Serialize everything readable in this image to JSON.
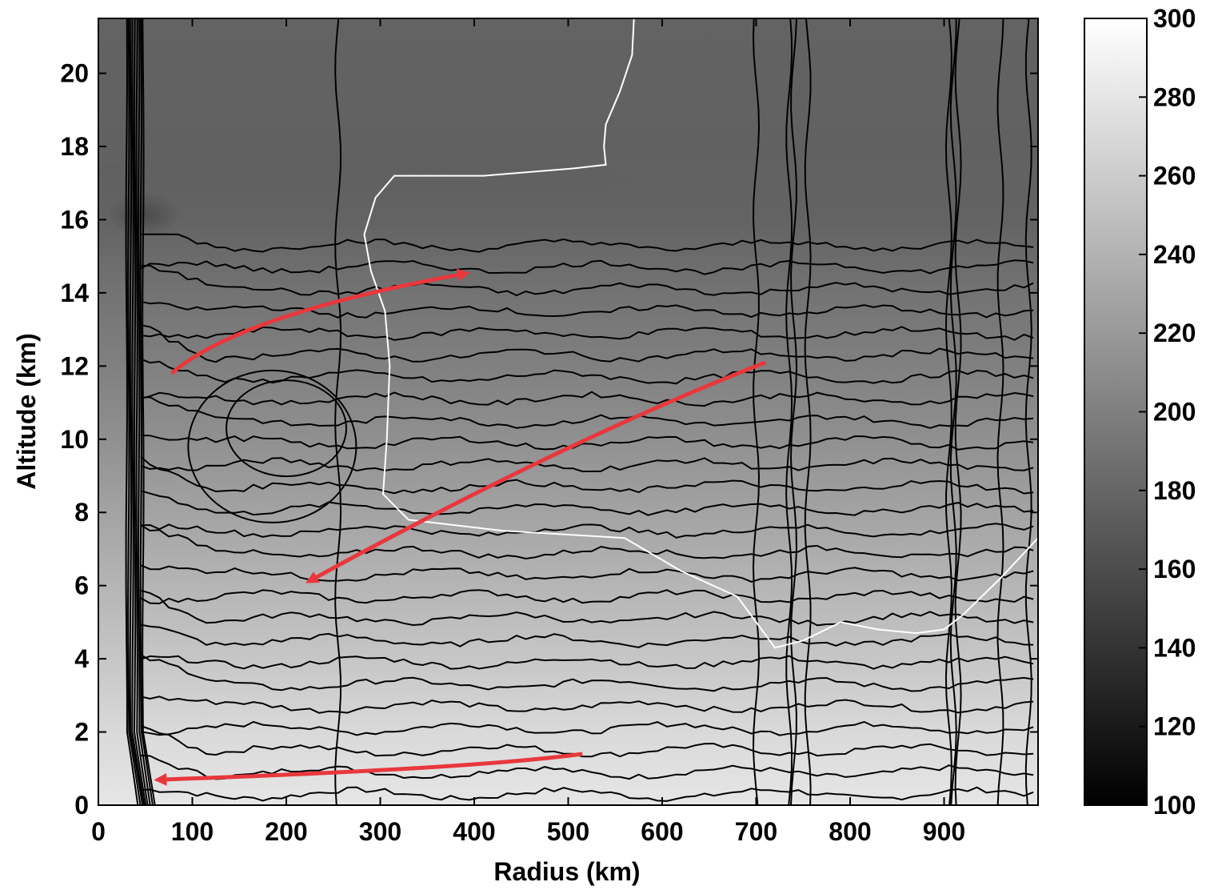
{
  "chart_data": {
    "type": "heatmap",
    "xlabel": "Radius (km)",
    "ylabel": "Altitude (km)",
    "xlim": [
      0,
      1000
    ],
    "ylim": [
      0,
      21.5
    ],
    "x_ticks": [
      0,
      100,
      200,
      300,
      400,
      500,
      600,
      700,
      800,
      900
    ],
    "y_ticks": [
      0,
      2,
      4,
      6,
      8,
      10,
      12,
      14,
      16,
      18,
      20
    ],
    "colorbar": {
      "range": [
        100,
        300
      ],
      "ticks": [
        100,
        120,
        140,
        160,
        180,
        200,
        220,
        240,
        260,
        280,
        300
      ],
      "colormap": "gray"
    },
    "background_field": {
      "description_levels": [
        {
          "altitude": 0,
          "value": 280
        },
        {
          "altitude": 2,
          "value": 270
        },
        {
          "altitude": 4,
          "value": 255
        },
        {
          "altitude": 6,
          "value": 242
        },
        {
          "altitude": 8,
          "value": 228
        },
        {
          "altitude": 10,
          "value": 213
        },
        {
          "altitude": 12,
          "value": 200
        },
        {
          "altitude": 14,
          "value": 190
        },
        {
          "altitude": 16,
          "value": 178
        },
        {
          "altitude": 18,
          "value": 176
        },
        {
          "altitude": 21.5,
          "value": 178
        }
      ]
    },
    "arrows": [
      {
        "points": [
          [
            78,
            11.8
          ],
          [
            150,
            13.4
          ],
          [
            385,
            14.5
          ]
        ]
      },
      {
        "points": [
          [
            710,
            12.1
          ],
          [
            500,
            10.0
          ],
          [
            230,
            6.2
          ]
        ]
      },
      {
        "points": [
          [
            515,
            1.4
          ],
          [
            400,
            1.0
          ],
          [
            70,
            0.7
          ]
        ]
      }
    ],
    "arrow_color": "#e8383d",
    "white_contour": [
      [
        570,
        21.5
      ],
      [
        568,
        20.5
      ],
      [
        555,
        19.5
      ],
      [
        540,
        18.6
      ],
      [
        538,
        18.0
      ],
      [
        540,
        17.5
      ],
      [
        505,
        17.4
      ],
      [
        410,
        17.2
      ],
      [
        315,
        17.2
      ],
      [
        295,
        16.6
      ],
      [
        283,
        15.6
      ],
      [
        290,
        14.6
      ],
      [
        305,
        13.5
      ],
      [
        310,
        12.0
      ],
      [
        307,
        10.0
      ],
      [
        303,
        8.5
      ],
      [
        330,
        7.8
      ],
      [
        430,
        7.5
      ],
      [
        560,
        7.3
      ],
      [
        620,
        6.4
      ],
      [
        680,
        5.7
      ],
      [
        700,
        5.0
      ],
      [
        720,
        4.3
      ],
      [
        750,
        4.5
      ],
      [
        790,
        5.0
      ],
      [
        830,
        4.8
      ],
      [
        870,
        4.7
      ],
      [
        900,
        4.8
      ],
      [
        920,
        5.2
      ],
      [
        960,
        6.2
      ],
      [
        1000,
        7.3
      ]
    ]
  }
}
